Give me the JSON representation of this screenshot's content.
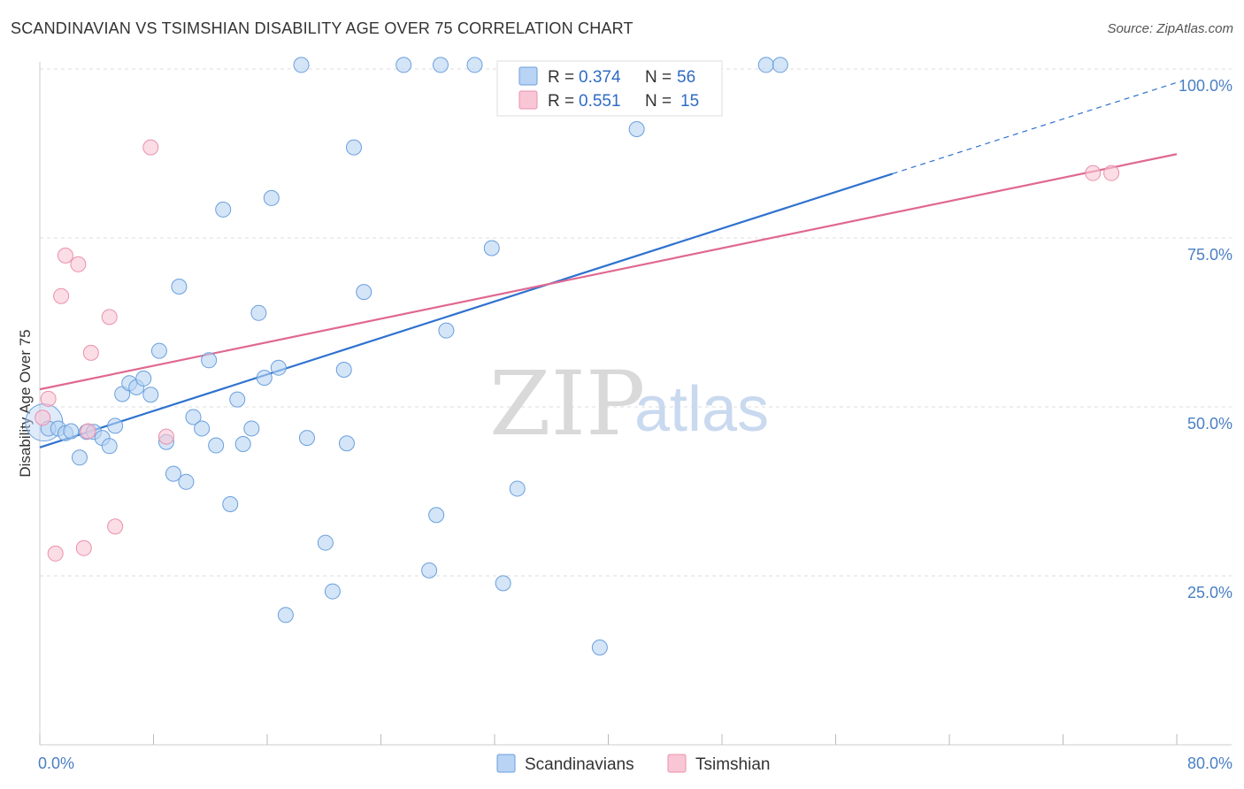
{
  "header": {
    "title": "SCANDINAVIAN VS TSIMSHIAN DISABILITY AGE OVER 75 CORRELATION CHART",
    "source": "Source: ZipAtlas.com"
  },
  "watermark": {
    "zip": "ZIP",
    "atlas": "atlas"
  },
  "colors": {
    "blue_fill": "#b8d3f3",
    "blue_stroke": "#6a9fdc",
    "blue_line": "#2f72cf",
    "pink_fill": "#f9c6d6",
    "pink_stroke": "#ea90ac",
    "pink_line": "#e06890",
    "tick_text": "#4a7fc4",
    "grid": "#dddddd"
  },
  "legend": {
    "rows": [
      {
        "r_label": "R =",
        "r_value": "0.374",
        "n_label": "N =",
        "n_value": "56"
      },
      {
        "r_label": "R =",
        "r_value": "0.551",
        "n_label": "N =",
        "n_value": "15"
      }
    ]
  },
  "bottom_legend": {
    "items": [
      "Scandinavians",
      "Tsimshian"
    ]
  },
  "chart_data": {
    "type": "scatter",
    "title": "SCANDINAVIAN VS TSIMSHIAN DISABILITY AGE OVER 75 CORRELATION CHART",
    "xlabel": "",
    "ylabel": "Disability Age Over 75",
    "xlim": [
      0,
      80
    ],
    "ylim": [
      0,
      105
    ],
    "x_tick_labels": [
      "0.0%",
      "80.0%"
    ],
    "y_ticks": [
      25,
      50,
      75,
      100
    ],
    "y_tick_labels": [
      "25.0%",
      "50.0%",
      "75.0%",
      "100.0%"
    ],
    "grid": true,
    "legend_position": "top-center",
    "series": [
      {
        "name": "Scandinavians",
        "color": "#6a9fdc",
        "stats": {
          "r": 0.374,
          "n": 56
        },
        "trend": {
          "x_start": 0,
          "y_start": 44.0,
          "x_end": 60,
          "y_end": 84.5,
          "extend_to_x": 80,
          "extend_to_y": 98.0
        },
        "points": [
          [
            0.3,
            47.7
          ],
          [
            0.6,
            46.8
          ],
          [
            1.3,
            46.8
          ],
          [
            1.8,
            46.1
          ],
          [
            2.2,
            46.4
          ],
          [
            2.8,
            42.5
          ],
          [
            3.3,
            46.3
          ],
          [
            3.8,
            46.3
          ],
          [
            4.4,
            45.4
          ],
          [
            4.9,
            44.2
          ],
          [
            5.3,
            47.2
          ],
          [
            5.8,
            51.9
          ],
          [
            6.3,
            53.5
          ],
          [
            6.8,
            52.9
          ],
          [
            7.3,
            54.2
          ],
          [
            7.8,
            51.8
          ],
          [
            8.4,
            58.3
          ],
          [
            8.9,
            44.8
          ],
          [
            9.4,
            40.1
          ],
          [
            9.8,
            67.8
          ],
          [
            10.3,
            38.9
          ],
          [
            10.8,
            48.5
          ],
          [
            11.4,
            46.8
          ],
          [
            11.9,
            56.9
          ],
          [
            12.4,
            44.3
          ],
          [
            12.9,
            79.2
          ],
          [
            13.4,
            35.6
          ],
          [
            13.9,
            51.1
          ],
          [
            14.3,
            44.5
          ],
          [
            14.9,
            46.8
          ],
          [
            15.4,
            63.9
          ],
          [
            15.8,
            54.3
          ],
          [
            16.3,
            80.9
          ],
          [
            16.8,
            55.8
          ],
          [
            17.3,
            19.2
          ],
          [
            18.4,
            100.6
          ],
          [
            18.8,
            45.4
          ],
          [
            20.1,
            29.9
          ],
          [
            20.6,
            22.7
          ],
          [
            21.4,
            55.5
          ],
          [
            21.6,
            44.6
          ],
          [
            22.1,
            88.4
          ],
          [
            22.8,
            67.0
          ],
          [
            25.6,
            100.6
          ],
          [
            27.4,
            25.8
          ],
          [
            27.9,
            34.0
          ],
          [
            28.2,
            100.6
          ],
          [
            28.6,
            61.3
          ],
          [
            30.6,
            100.6
          ],
          [
            31.8,
            73.5
          ],
          [
            32.6,
            23.9
          ],
          [
            33.6,
            37.9
          ],
          [
            39.4,
            14.4
          ],
          [
            42.0,
            91.1
          ],
          [
            51.1,
            100.6
          ],
          [
            52.1,
            100.6
          ]
        ]
      },
      {
        "name": "Tsimshian",
        "color": "#ea90ac",
        "stats": {
          "r": 0.551,
          "n": 15
        },
        "trend": {
          "x_start": 0,
          "y_start": 52.6,
          "x_end": 80,
          "y_end": 87.4
        },
        "points": [
          [
            0.2,
            48.4
          ],
          [
            0.6,
            51.2
          ],
          [
            1.1,
            28.3
          ],
          [
            1.5,
            66.4
          ],
          [
            1.8,
            72.4
          ],
          [
            2.7,
            71.1
          ],
          [
            3.1,
            29.1
          ],
          [
            3.4,
            46.4
          ],
          [
            3.6,
            58.0
          ],
          [
            4.9,
            63.3
          ],
          [
            5.3,
            32.3
          ],
          [
            7.8,
            88.4
          ],
          [
            8.9,
            45.6
          ],
          [
            74.1,
            84.6
          ],
          [
            75.4,
            84.6
          ]
        ]
      }
    ]
  }
}
